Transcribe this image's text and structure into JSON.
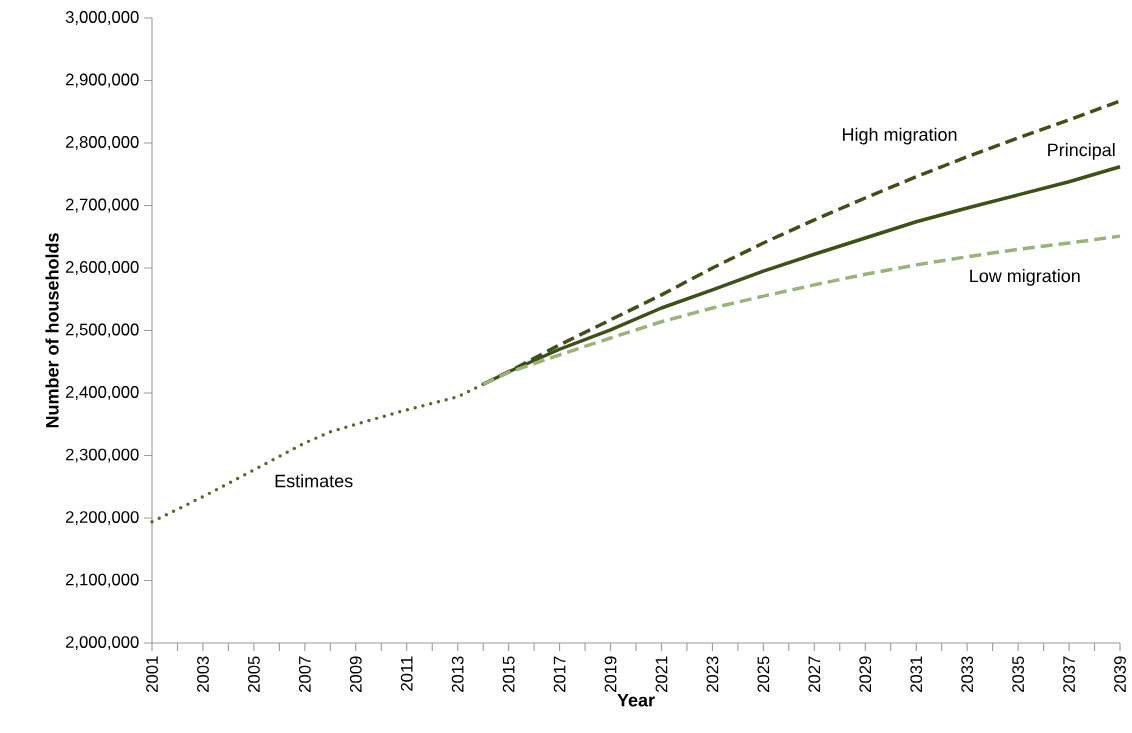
{
  "chart_data": {
    "type": "line",
    "xlabel": "Year",
    "ylabel": "Number of households",
    "xlim": [
      2001,
      2039
    ],
    "ylim": [
      2000000,
      3000000
    ],
    "xticks": [
      2001,
      {
        "value": 2002,
        "label": null
      },
      2003,
      {
        "value": 2004,
        "label": null
      },
      2005,
      {
        "value": 2006,
        "label": null
      },
      2007,
      {
        "value": 2008,
        "label": null
      },
      2009,
      {
        "value": 2010,
        "label": null
      },
      2011,
      {
        "value": 2012,
        "label": null
      },
      2013,
      {
        "value": 2014,
        "label": null
      },
      2015,
      {
        "value": 2016,
        "label": null
      },
      2017,
      {
        "value": 2018,
        "label": null
      },
      2019,
      {
        "value": 2020,
        "label": null
      },
      2021,
      {
        "value": 2022,
        "label": null
      },
      2023,
      {
        "value": 2024,
        "label": null
      },
      2025,
      {
        "value": 2026,
        "label": null
      },
      2027,
      {
        "value": 2028,
        "label": null
      },
      2029,
      {
        "value": 2030,
        "label": null
      },
      2031,
      {
        "value": 2032,
        "label": null
      },
      2033,
      {
        "value": 2034,
        "label": null
      },
      2035,
      {
        "value": 2036,
        "label": null
      },
      2037,
      {
        "value": 2038,
        "label": null
      },
      2039
    ],
    "yticks": [
      {
        "value": 2000000,
        "label": "2,000,000"
      },
      {
        "value": 2100000,
        "label": "2,100,000"
      },
      {
        "value": 2200000,
        "label": "2,200,000"
      },
      {
        "value": 2300000,
        "label": "2,300,000"
      },
      {
        "value": 2400000,
        "label": "2,400,000"
      },
      {
        "value": 2500000,
        "label": "2,500,000"
      },
      {
        "value": 2600000,
        "label": "2,600,000"
      },
      {
        "value": 2700000,
        "label": "2,700,000"
      },
      {
        "value": 2800000,
        "label": "2,800,000"
      },
      {
        "value": 2900000,
        "label": "2,900,000"
      },
      {
        "value": 3000000,
        "label": "3,000,000"
      }
    ],
    "grid": false,
    "legend": false,
    "marker": "none",
    "series": [
      {
        "name": "Estimates",
        "color": "#556b2f",
        "line_style": "dotted",
        "x": [
          2001,
          2003,
          2005,
          2007,
          2008,
          2009,
          2011,
          2013,
          2014
        ],
        "values": [
          2194000,
          2234000,
          2277000,
          2320000,
          2338000,
          2350000,
          2373000,
          2394000,
          2414000
        ]
      },
      {
        "name": "High migration",
        "color": "#3d5016",
        "line_style": "dashed",
        "x": [
          2014,
          2015,
          2017,
          2019,
          2021,
          2023,
          2025,
          2027,
          2029,
          2031,
          2033,
          2035,
          2037,
          2039
        ],
        "values": [
          2414000,
          2434000,
          2477000,
          2517000,
          2557000,
          2600000,
          2640000,
          2677000,
          2712000,
          2746000,
          2778000,
          2808000,
          2837000,
          2867000
        ]
      },
      {
        "name": "Principal",
        "color": "#3d5016",
        "line_style": "solid",
        "x": [
          2014,
          2015,
          2017,
          2019,
          2021,
          2023,
          2025,
          2027,
          2029,
          2031,
          2033,
          2035,
          2037,
          2039
        ],
        "values": [
          2414000,
          2434000,
          2470000,
          2501000,
          2536000,
          2565000,
          2595000,
          2622000,
          2648000,
          2674000,
          2696000,
          2717000,
          2738000,
          2762000
        ]
      },
      {
        "name": "Low migration",
        "color": "#9bb37a",
        "line_style": "dashed",
        "x": [
          2014,
          2015,
          2017,
          2019,
          2021,
          2023,
          2025,
          2027,
          2029,
          2031,
          2033,
          2035,
          2037,
          2039
        ],
        "values": [
          2414000,
          2433000,
          2461000,
          2488000,
          2514000,
          2536000,
          2555000,
          2573000,
          2590000,
          2605000,
          2618000,
          2630000,
          2640000,
          2651000
        ]
      }
    ]
  }
}
